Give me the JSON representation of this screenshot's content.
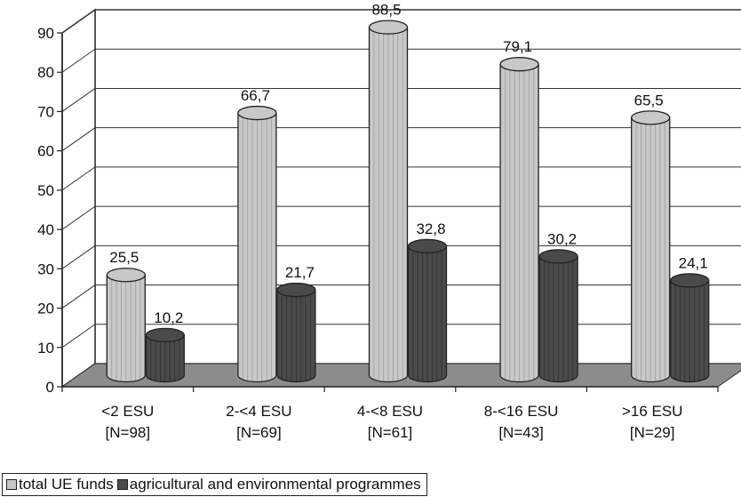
{
  "chart_data": {
    "type": "bar",
    "categories": [
      [
        "<2 ESU",
        "[N=98]"
      ],
      [
        "2-<4 ESU",
        "[N=69]"
      ],
      [
        "4-<8 ESU",
        "[N=61]"
      ],
      [
        "8-<16 ESU",
        "[N=43]"
      ],
      [
        ">16 ESU",
        "[N=29]"
      ]
    ],
    "series": [
      {
        "name": "total UE funds",
        "values": [
          25.5,
          66.7,
          88.5,
          79.1,
          65.5
        ],
        "labels": [
          "25,5",
          "66,7",
          "88,5",
          "79,1",
          "65,5"
        ],
        "color": "#c8c8c8"
      },
      {
        "name": "agricultural and environmental programmes",
        "values": [
          10.2,
          21.7,
          32.8,
          30.2,
          24.1
        ],
        "labels": [
          "10,2",
          "21,7",
          "32,8",
          "30,2",
          "24,1"
        ],
        "color": "#4a4a4a"
      }
    ],
    "ylim": [
      0,
      90
    ],
    "yticks": [
      "0",
      "10",
      "20",
      "30",
      "40",
      "50",
      "60",
      "70",
      "80",
      "90"
    ],
    "grid": true,
    "legend_position": "bottom-left",
    "style": "3d-cylinder"
  }
}
